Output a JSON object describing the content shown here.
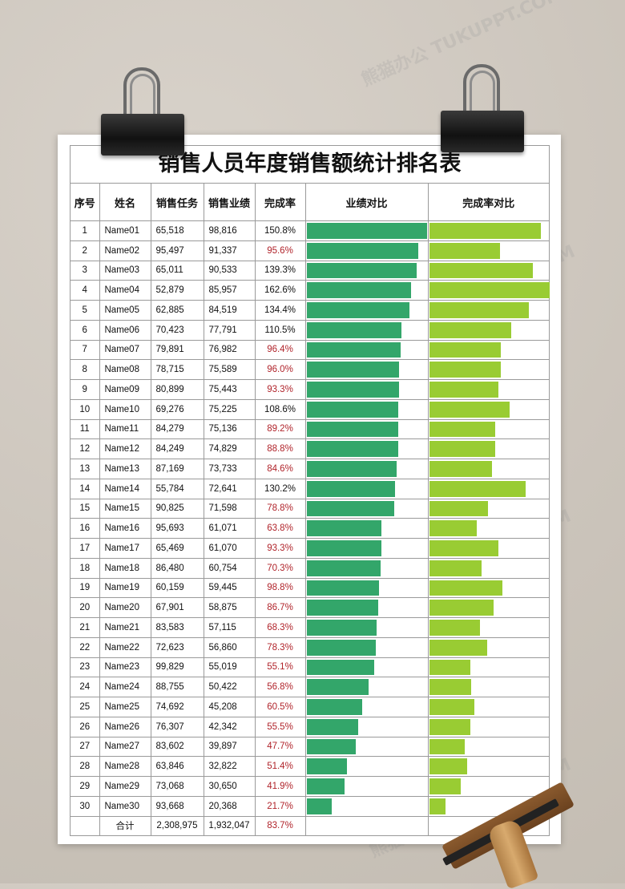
{
  "title": "销售人员年度销售额统计排名表",
  "headers": [
    "序号",
    "姓名",
    "销售任务",
    "销售业绩",
    "完成率",
    "业绩对比",
    "完成率对比"
  ],
  "colors": {
    "perf_bar": "#33a66a",
    "rate_bar": "#99cc33",
    "below_target_text": "#b0232a"
  },
  "rows": [
    {
      "no": "1",
      "name": "Name01",
      "task": "65,518",
      "sales": "98,816",
      "rate": "150.8%",
      "sales_value": 98816,
      "rate_value": 150.8
    },
    {
      "no": "2",
      "name": "Name02",
      "task": "95,497",
      "sales": "91,337",
      "rate": "95.6%",
      "sales_value": 91337,
      "rate_value": 95.6
    },
    {
      "no": "3",
      "name": "Name03",
      "task": "65,011",
      "sales": "90,533",
      "rate": "139.3%",
      "sales_value": 90533,
      "rate_value": 139.3
    },
    {
      "no": "4",
      "name": "Name04",
      "task": "52,879",
      "sales": "85,957",
      "rate": "162.6%",
      "sales_value": 85957,
      "rate_value": 162.6
    },
    {
      "no": "5",
      "name": "Name05",
      "task": "62,885",
      "sales": "84,519",
      "rate": "134.4%",
      "sales_value": 84519,
      "rate_value": 134.4
    },
    {
      "no": "6",
      "name": "Name06",
      "task": "70,423",
      "sales": "77,791",
      "rate": "110.5%",
      "sales_value": 77791,
      "rate_value": 110.5
    },
    {
      "no": "7",
      "name": "Name07",
      "task": "79,891",
      "sales": "76,982",
      "rate": "96.4%",
      "sales_value": 76982,
      "rate_value": 96.4
    },
    {
      "no": "8",
      "name": "Name08",
      "task": "78,715",
      "sales": "75,589",
      "rate": "96.0%",
      "sales_value": 75589,
      "rate_value": 96.0
    },
    {
      "no": "9",
      "name": "Name09",
      "task": "80,899",
      "sales": "75,443",
      "rate": "93.3%",
      "sales_value": 75443,
      "rate_value": 93.3
    },
    {
      "no": "10",
      "name": "Name10",
      "task": "69,276",
      "sales": "75,225",
      "rate": "108.6%",
      "sales_value": 75225,
      "rate_value": 108.6
    },
    {
      "no": "11",
      "name": "Name11",
      "task": "84,279",
      "sales": "75,136",
      "rate": "89.2%",
      "sales_value": 75136,
      "rate_value": 89.2
    },
    {
      "no": "12",
      "name": "Name12",
      "task": "84,249",
      "sales": "74,829",
      "rate": "88.8%",
      "sales_value": 74829,
      "rate_value": 88.8
    },
    {
      "no": "13",
      "name": "Name13",
      "task": "87,169",
      "sales": "73,733",
      "rate": "84.6%",
      "sales_value": 73733,
      "rate_value": 84.6
    },
    {
      "no": "14",
      "name": "Name14",
      "task": "55,784",
      "sales": "72,641",
      "rate": "130.2%",
      "sales_value": 72641,
      "rate_value": 130.2
    },
    {
      "no": "15",
      "name": "Name15",
      "task": "90,825",
      "sales": "71,598",
      "rate": "78.8%",
      "sales_value": 71598,
      "rate_value": 78.8
    },
    {
      "no": "16",
      "name": "Name16",
      "task": "95,693",
      "sales": "61,071",
      "rate": "63.8%",
      "sales_value": 61071,
      "rate_value": 63.8
    },
    {
      "no": "17",
      "name": "Name17",
      "task": "65,469",
      "sales": "61,070",
      "rate": "93.3%",
      "sales_value": 61070,
      "rate_value": 93.3
    },
    {
      "no": "18",
      "name": "Name18",
      "task": "86,480",
      "sales": "60,754",
      "rate": "70.3%",
      "sales_value": 60754,
      "rate_value": 70.3
    },
    {
      "no": "19",
      "name": "Name19",
      "task": "60,159",
      "sales": "59,445",
      "rate": "98.8%",
      "sales_value": 59445,
      "rate_value": 98.8
    },
    {
      "no": "20",
      "name": "Name20",
      "task": "67,901",
      "sales": "58,875",
      "rate": "86.7%",
      "sales_value": 58875,
      "rate_value": 86.7
    },
    {
      "no": "21",
      "name": "Name21",
      "task": "83,583",
      "sales": "57,115",
      "rate": "68.3%",
      "sales_value": 57115,
      "rate_value": 68.3
    },
    {
      "no": "22",
      "name": "Name22",
      "task": "72,623",
      "sales": "56,860",
      "rate": "78.3%",
      "sales_value": 56860,
      "rate_value": 78.3
    },
    {
      "no": "23",
      "name": "Name23",
      "task": "99,829",
      "sales": "55,019",
      "rate": "55.1%",
      "sales_value": 55019,
      "rate_value": 55.1
    },
    {
      "no": "24",
      "name": "Name24",
      "task": "88,755",
      "sales": "50,422",
      "rate": "56.8%",
      "sales_value": 50422,
      "rate_value": 56.8
    },
    {
      "no": "25",
      "name": "Name25",
      "task": "74,692",
      "sales": "45,208",
      "rate": "60.5%",
      "sales_value": 45208,
      "rate_value": 60.5
    },
    {
      "no": "26",
      "name": "Name26",
      "task": "76,307",
      "sales": "42,342",
      "rate": "55.5%",
      "sales_value": 42342,
      "rate_value": 55.5
    },
    {
      "no": "27",
      "name": "Name27",
      "task": "83,602",
      "sales": "39,897",
      "rate": "47.7%",
      "sales_value": 39897,
      "rate_value": 47.7
    },
    {
      "no": "28",
      "name": "Name28",
      "task": "63,846",
      "sales": "32,822",
      "rate": "51.4%",
      "sales_value": 32822,
      "rate_value": 51.4
    },
    {
      "no": "29",
      "name": "Name29",
      "task": "73,068",
      "sales": "30,650",
      "rate": "41.9%",
      "sales_value": 30650,
      "rate_value": 41.9
    },
    {
      "no": "30",
      "name": "Name30",
      "task": "93,668",
      "sales": "20,368",
      "rate": "21.7%",
      "sales_value": 20368,
      "rate_value": 21.7
    }
  ],
  "total": {
    "label": "合计",
    "task": "2,308,975",
    "sales": "1,932,047",
    "rate": "83.7%"
  },
  "watermark_text": "熊猫办公 TUKUPPT.COM"
}
